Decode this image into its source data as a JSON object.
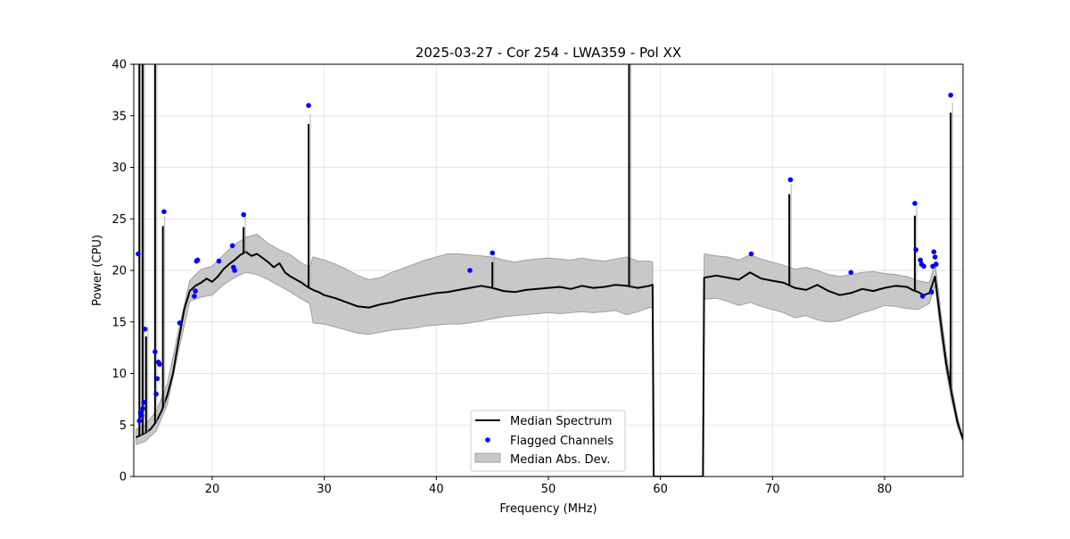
{
  "chart_data": {
    "type": "line",
    "title": "2025-03-27 - Cor 254 - LWA359 - Pol XX",
    "xlabel": "Frequency (MHz)",
    "ylabel": "Power (CPU)",
    "xlim": [
      13,
      87
    ],
    "ylim": [
      0,
      40
    ],
    "xticks": [
      20,
      30,
      40,
      50,
      60,
      70,
      80
    ],
    "yticks": [
      0,
      5,
      10,
      15,
      20,
      25,
      30,
      35,
      40
    ],
    "grid": true,
    "legend": {
      "location": "lower-center",
      "entries": [
        "Median Spectrum",
        "Flagged Channels",
        "Median Abs. Dev."
      ]
    },
    "colors": {
      "line": "#000000",
      "flag": "#0000ff",
      "band": "#c8c8c8",
      "band_edge": "#a0a0a0",
      "grid": "#e6e6e6"
    },
    "series": [
      {
        "name": "Median Spectrum",
        "x": [
          13.2,
          13.4,
          13.6,
          14.0,
          14.5,
          15.0,
          15.5,
          16.0,
          16.5,
          17.0,
          17.5,
          18.0,
          18.5,
          19.0,
          19.5,
          20.0,
          20.5,
          21.0,
          21.5,
          22.0,
          22.5,
          23.0,
          23.5,
          24.0,
          24.5,
          25.0,
          25.5,
          26.0,
          26.5,
          27.0,
          27.5,
          28.0,
          28.5,
          29.0,
          29.5,
          30.0,
          31.0,
          32.0,
          33.0,
          34.0,
          35.0,
          36.0,
          37.0,
          38.0,
          39.0,
          40.0,
          41.0,
          42.0,
          43.0,
          44.0,
          45.0,
          46.0,
          47.0,
          48.0,
          49.0,
          50.0,
          51.0,
          52.0,
          53.0,
          54.0,
          55.0,
          56.0,
          57.0,
          58.0,
          59.0,
          59.3,
          59.4,
          63.8,
          63.9,
          65.0,
          66.0,
          67.0,
          68.0,
          69.0,
          70.0,
          71.0,
          72.0,
          73.0,
          74.0,
          75.0,
          76.0,
          77.0,
          78.0,
          79.0,
          80.0,
          81.0,
          82.0,
          82.5,
          83.0,
          83.5,
          84.0,
          84.5,
          85.0,
          85.5,
          86.0,
          86.5,
          87.0
        ],
        "y": [
          3.8,
          3.9,
          4.0,
          4.2,
          4.6,
          5.3,
          6.4,
          7.9,
          10.0,
          13.2,
          16.2,
          18.0,
          18.5,
          18.8,
          19.2,
          18.9,
          19.4,
          20.1,
          20.6,
          21.0,
          21.5,
          21.8,
          21.4,
          21.6,
          21.2,
          20.8,
          20.3,
          20.7,
          19.8,
          19.4,
          19.1,
          18.8,
          18.4,
          18.1,
          17.9,
          17.6,
          17.3,
          16.9,
          16.5,
          16.4,
          16.7,
          16.9,
          17.2,
          17.4,
          17.6,
          17.8,
          17.9,
          18.1,
          18.3,
          18.5,
          18.3,
          18.0,
          17.9,
          18.1,
          18.2,
          18.3,
          18.4,
          18.2,
          18.5,
          18.3,
          18.4,
          18.6,
          18.5,
          18.3,
          18.5,
          18.6,
          0.0,
          0.0,
          19.3,
          19.5,
          19.3,
          19.1,
          19.8,
          19.2,
          19.0,
          18.8,
          18.3,
          18.1,
          18.6,
          18.0,
          17.6,
          17.8,
          18.2,
          18.0,
          18.3,
          18.5,
          18.4,
          18.1,
          17.9,
          17.6,
          17.8,
          19.4,
          15.0,
          11.0,
          8.0,
          5.3,
          3.6
        ]
      },
      {
        "name": "Median Abs. Dev.",
        "x": [
          13.2,
          14.0,
          15.0,
          16.0,
          17.0,
          18.0,
          19.0,
          20.0,
          21.0,
          22.0,
          23.0,
          24.0,
          25.0,
          26.0,
          27.0,
          28.0,
          28.7,
          29.0,
          30.0,
          31.0,
          32.0,
          33.0,
          34.0,
          35.0,
          36.0,
          37.0,
          38.0,
          39.0,
          40.0,
          41.0,
          42.0,
          43.0,
          44.0,
          45.0,
          46.0,
          47.0,
          48.0,
          49.0,
          50.0,
          51.0,
          52.0,
          53.0,
          54.0,
          55.0,
          56.0,
          57.0,
          58.0,
          59.0,
          59.3,
          63.9,
          65.0,
          66.0,
          67.0,
          68.0,
          69.0,
          70.0,
          71.0,
          72.0,
          73.0,
          74.0,
          75.0,
          76.0,
          77.0,
          78.0,
          79.0,
          80.0,
          81.0,
          82.0,
          83.0,
          84.0,
          84.5,
          85.0,
          85.5,
          86.0,
          86.5,
          87.0
        ],
        "upper": [
          4.6,
          5.0,
          6.3,
          9.0,
          14.2,
          19.0,
          20.1,
          20.4,
          21.5,
          22.5,
          23.2,
          23.5,
          22.6,
          22.0,
          21.5,
          20.7,
          20.3,
          21.3,
          21.0,
          20.6,
          20.1,
          19.5,
          19.1,
          19.3,
          19.8,
          20.2,
          20.6,
          21.0,
          21.3,
          21.6,
          21.6,
          21.5,
          21.4,
          21.3,
          21.0,
          20.8,
          21.0,
          21.1,
          21.2,
          21.1,
          21.0,
          21.2,
          21.0,
          20.9,
          21.1,
          21.3,
          20.9,
          20.9,
          20.8,
          21.6,
          21.4,
          21.3,
          21.0,
          21.5,
          21.1,
          20.8,
          20.5,
          20.1,
          20.3,
          20.0,
          19.6,
          19.4,
          19.6,
          19.8,
          19.9,
          19.7,
          19.6,
          19.4,
          19.0,
          18.8,
          20.8,
          16.2,
          12.0,
          8.8,
          5.8,
          3.8
        ],
        "lower": [
          3.1,
          3.4,
          4.4,
          7.0,
          12.2,
          17.0,
          17.4,
          17.6,
          18.6,
          19.3,
          19.8,
          19.6,
          19.1,
          18.5,
          17.9,
          17.2,
          16.8,
          14.9,
          14.8,
          14.5,
          14.2,
          13.9,
          13.8,
          14.0,
          14.2,
          14.3,
          14.4,
          14.6,
          14.7,
          14.8,
          14.8,
          14.9,
          15.1,
          15.3,
          15.5,
          15.6,
          15.7,
          15.8,
          15.9,
          15.8,
          15.9,
          16.0,
          15.9,
          16.0,
          16.1,
          15.7,
          16.0,
          16.4,
          16.4,
          17.2,
          17.3,
          17.0,
          16.6,
          16.9,
          16.5,
          16.2,
          15.9,
          15.4,
          15.6,
          15.2,
          15.0,
          15.1,
          15.5,
          15.9,
          16.2,
          16.6,
          16.5,
          16.3,
          16.2,
          16.8,
          18.6,
          14.0,
          10.2,
          7.3,
          4.9,
          3.4
        ]
      },
      {
        "name": "Flagged Channels",
        "x": [
          13.4,
          13.5,
          13.6,
          13.7,
          13.8,
          13.9,
          14.0,
          14.9,
          15.0,
          15.1,
          15.2,
          15.3,
          15.7,
          17.1,
          18.4,
          18.5,
          18.6,
          18.7,
          20.6,
          21.8,
          21.9,
          22.0,
          22.8,
          28.6,
          43.0,
          45.0,
          68.1,
          71.6,
          77.0,
          82.7,
          82.8,
          83.2,
          83.3,
          83.4,
          83.5,
          84.2,
          84.3,
          84.4,
          84.5,
          84.6,
          85.9
        ],
        "y": [
          21.6,
          5.4,
          6.2,
          5.9,
          6.6,
          7.2,
          14.3,
          12.1,
          8.0,
          9.5,
          11.1,
          10.9,
          25.7,
          14.9,
          17.5,
          18.0,
          20.9,
          21.0,
          20.9,
          22.4,
          20.3,
          20.0,
          25.4,
          36.0,
          20.0,
          21.7,
          21.6,
          28.8,
          19.8,
          26.5,
          22.0,
          21.0,
          20.6,
          17.5,
          20.4,
          17.9,
          20.4,
          21.8,
          21.3,
          20.6,
          37.0
        ]
      }
    ],
    "spikes": [
      {
        "x": 13.5,
        "y": 40.5
      },
      {
        "x": 13.8,
        "y": 40.5
      },
      {
        "x": 14.1,
        "y": 13.6
      },
      {
        "x": 14.9,
        "y": 40.5
      },
      {
        "x": 15.6,
        "y": 24.3
      },
      {
        "x": 22.8,
        "y": 24.2
      },
      {
        "x": 28.6,
        "y": 34.2
      },
      {
        "x": 45.0,
        "y": 20.8
      },
      {
        "x": 57.2,
        "y": 40.5
      },
      {
        "x": 71.5,
        "y": 27.4
      },
      {
        "x": 82.7,
        "y": 25.3
      },
      {
        "x": 85.9,
        "y": 35.3
      }
    ]
  }
}
